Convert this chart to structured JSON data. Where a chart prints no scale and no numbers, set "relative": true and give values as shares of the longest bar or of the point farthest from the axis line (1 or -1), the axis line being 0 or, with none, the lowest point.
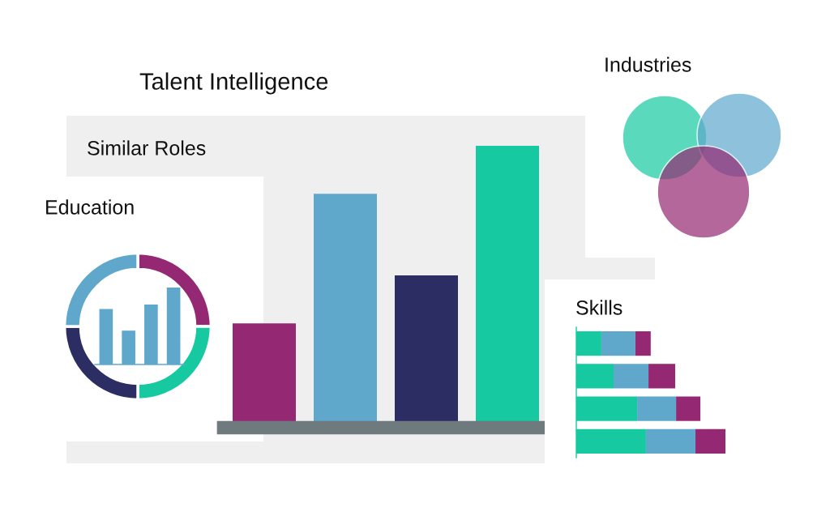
{
  "chart_data": [
    {
      "type": "bar",
      "title": "Talent Intelligence",
      "subtitle": "Similar Roles",
      "relative": true,
      "categories": [
        null,
        null,
        null,
        null
      ],
      "values": [
        0.37,
        0.83,
        0.54,
        1
      ],
      "colors": [
        "#952872",
        "#5fa8cc",
        "#2b2d63",
        "#16c9a0"
      ]
    },
    {
      "type": "donut",
      "title": "Education",
      "categories": [
        null,
        null,
        null,
        null
      ],
      "values": [
        25,
        25,
        25,
        25
      ],
      "colors": [
        "#952872",
        "#16c9a0",
        "#2b2d63",
        "#5fa8cc"
      ]
    },
    {
      "type": "bar",
      "relative": true,
      "categories": [
        null,
        null,
        null,
        null
      ],
      "values": [
        0.72,
        0.44,
        0.78,
        1
      ],
      "color": "#5fa8cc"
    },
    {
      "type": "other",
      "title": "Industries"
    },
    {
      "type": "bar",
      "title": "Skills",
      "orientation": "horizontal",
      "stacked": true,
      "relative": true,
      "categories": [
        null,
        null,
        null,
        null
      ],
      "series": [
        {
          "color": "#16c9a0",
          "values": [
            0.168,
            0.25,
            0.408,
            0.467
          ]
        },
        {
          "color": "#5fa8cc",
          "values": [
            0.228,
            0.234,
            0.261,
            0.332
          ]
        },
        {
          "color": "#952872",
          "values": [
            0.103,
            0.179,
            0.163,
            0.201
          ]
        }
      ]
    }
  ]
}
